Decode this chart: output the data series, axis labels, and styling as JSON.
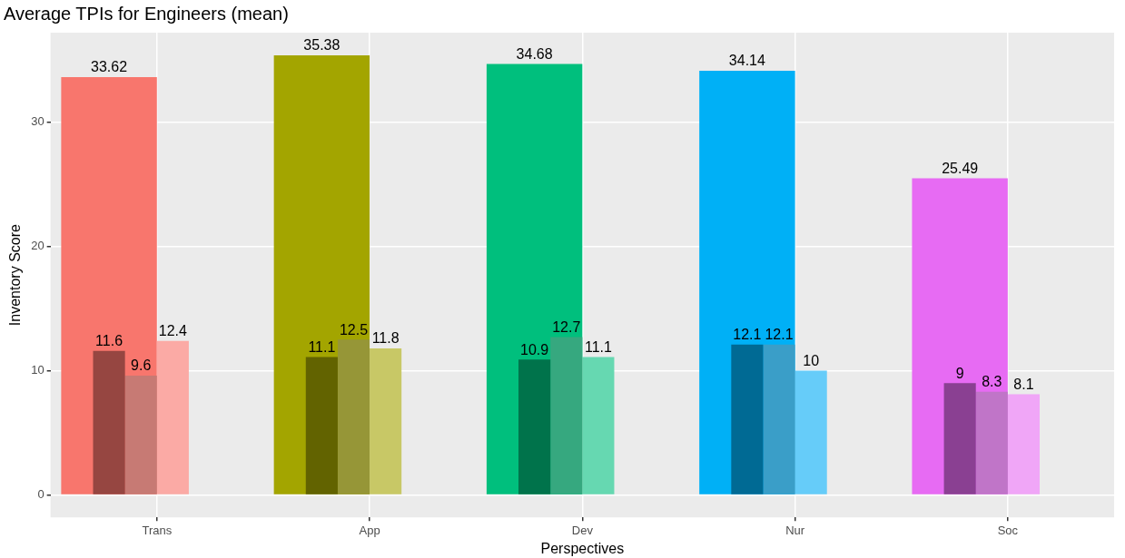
{
  "chart_data": {
    "type": "bar",
    "title": "Average TPIs for Engineers (mean)",
    "xlabel": "Perspectives",
    "ylabel": "Inventory Score",
    "categories": [
      "Trans",
      "App",
      "Dev",
      "Nur",
      "Soc"
    ],
    "series": [
      {
        "values": [
          33.62,
          35.38,
          34.68,
          34.14,
          25.49
        ],
        "colors": [
          "#f8766d",
          "#a3a500",
          "#00bf7d",
          "#00b0f6",
          "#e76bf3"
        ]
      },
      {
        "values": [
          11.6,
          11.1,
          10.9,
          12.1,
          9
        ],
        "colors": [
          "#964641",
          "#626300",
          "#00734b",
          "#006a94",
          "#8a4092"
        ]
      },
      {
        "values": [
          9.6,
          12.5,
          12.7,
          12.1,
          8.3
        ],
        "colors": [
          "#c77a74",
          "#969637",
          "#36a87f",
          "#3a9ec8",
          "#c075c8"
        ]
      },
      {
        "values": [
          12.4,
          11.8,
          11.1,
          10,
          8.1
        ],
        "colors": [
          "#fbaaa5",
          "#c8c866",
          "#66d8b1",
          "#66ccf9",
          "#f0a6f7"
        ]
      }
    ],
    "ylim": [
      -1.8,
      37.2
    ],
    "yticks": [
      0,
      10,
      20,
      30
    ],
    "grid": true,
    "legend": false,
    "data_labels": true
  }
}
